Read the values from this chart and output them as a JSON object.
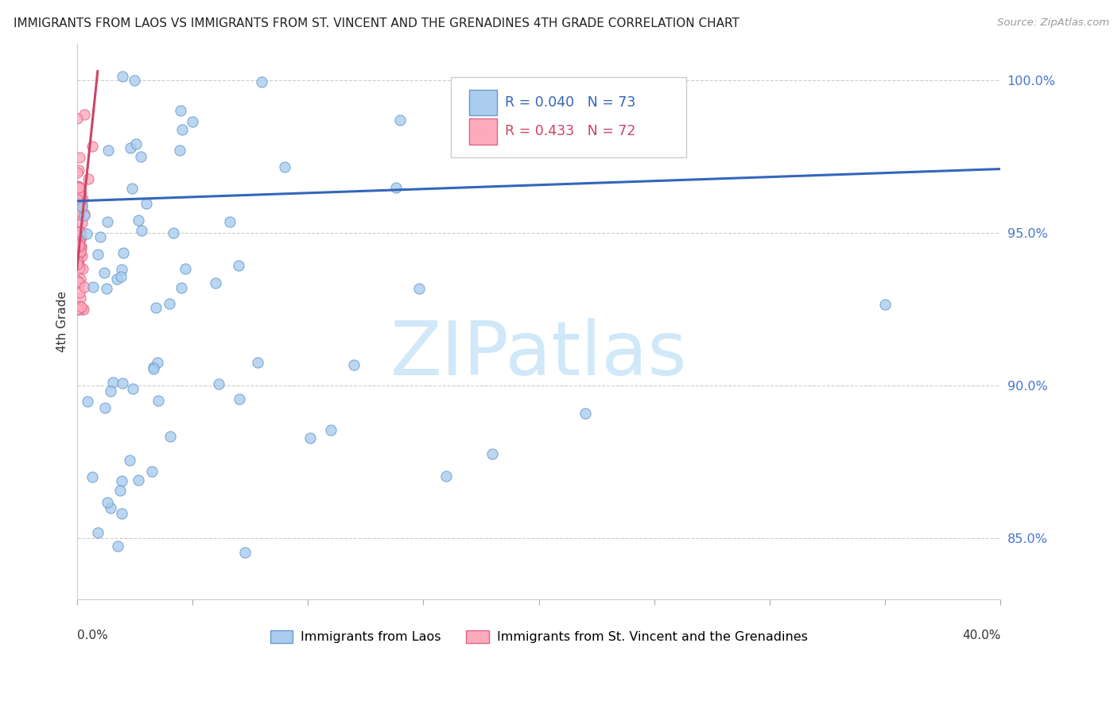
{
  "title": "IMMIGRANTS FROM LAOS VS IMMIGRANTS FROM ST. VINCENT AND THE GRENADINES 4TH GRADE CORRELATION CHART",
  "source": "Source: ZipAtlas.com",
  "ylabel": "4th Grade",
  "xmin": 0.0,
  "xmax": 40.0,
  "ymin": 83.0,
  "ymax": 101.2,
  "yticks": [
    85.0,
    90.0,
    95.0,
    100.0
  ],
  "legend_laos": "Immigrants from Laos",
  "legend_stv": "Immigrants from St. Vincent and the Grenadines",
  "R_laos": 0.04,
  "N_laos": 73,
  "R_stv": 0.433,
  "N_stv": 72,
  "color_laos": "#aaccee",
  "color_laos_edge": "#6699cc",
  "color_stv": "#ffaabb",
  "color_stv_edge": "#dd6688",
  "color_laos_line": "#3366bb",
  "color_stv_line": "#cc4466",
  "laos_trend_x": [
    0.0,
    40.0
  ],
  "laos_trend_y": [
    96.05,
    97.1
  ],
  "stv_trend_x": [
    0.0,
    0.9
  ],
  "stv_trend_y": [
    93.8,
    100.3
  ],
  "watermark": "ZIPatlas",
  "watermark_color": "#d0e8f8"
}
